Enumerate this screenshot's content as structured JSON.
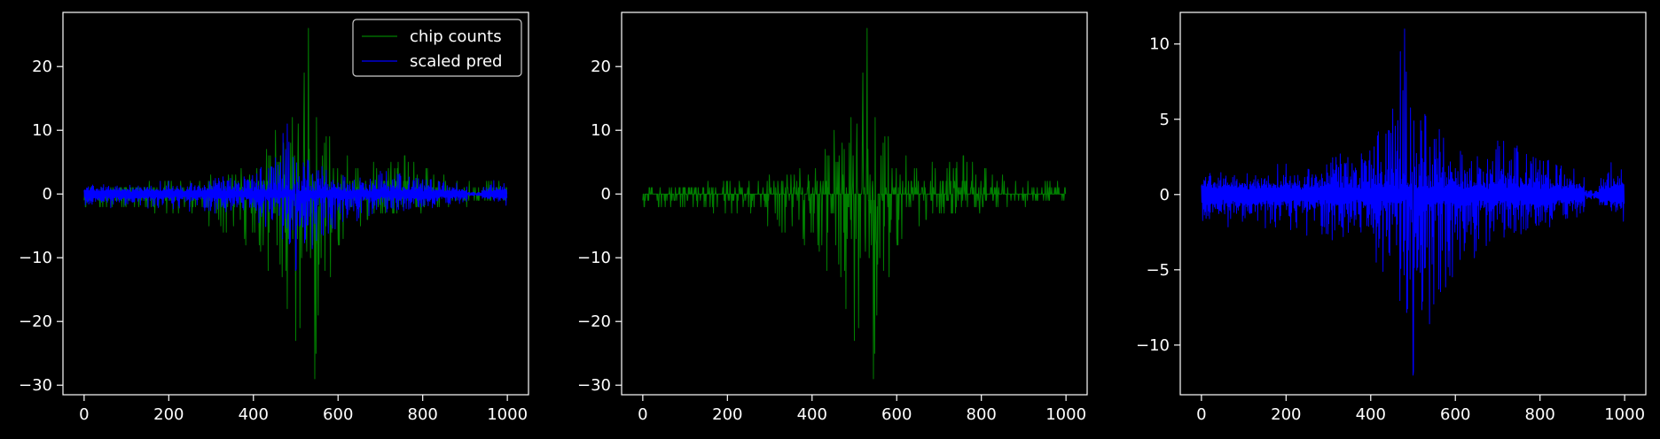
{
  "figure": {
    "background": "#000000",
    "foreground": "#ffffff"
  },
  "chart_data": [
    {
      "type": "line",
      "title": "",
      "xlabel": "",
      "ylabel": "",
      "xlim": [
        -50,
        1050
      ],
      "ylim": [
        -31.5,
        28.5
      ],
      "xticks": [
        0,
        200,
        400,
        600,
        800,
        1000
      ],
      "yticks": [
        -30,
        -20,
        -10,
        0,
        10,
        20
      ],
      "grid": false,
      "legend": {
        "placement": "top-right",
        "entries": [
          {
            "label": "chip counts",
            "color": "#008000"
          },
          {
            "label": "scaled pred",
            "color": "#0000ff"
          }
        ]
      },
      "series": [
        {
          "name": "chip counts",
          "color": "#008000",
          "n_points": 1000,
          "x_range": [
            0,
            999
          ],
          "envelope": {
            "x": [
              0,
              100,
              200,
              300,
              400,
              450,
              480,
              500,
              520,
              530,
              545,
              560,
              600,
              650,
              700,
              750,
              800,
              850,
              900,
              950,
              999
            ],
            "max": [
              1,
              2,
              2,
              3,
              5,
              11,
              16,
              10,
              15,
              26,
              19,
              13,
              9,
              4,
              6,
              6,
              6,
              4,
              2,
              3,
              2
            ],
            "min": [
              -2,
              -3,
              -3,
              -5,
              -9,
              -13,
              -18,
              -23,
              -20,
              -17,
              -29,
              -18,
              -10,
              -6,
              -4,
              -3,
              -3,
              -2,
              -2,
              -1,
              -2
            ]
          }
        },
        {
          "name": "scaled pred",
          "color": "#0000ff",
          "n_points": 1000,
          "x_range": [
            0,
            999
          ],
          "envelope": {
            "x": [
              0,
              100,
              200,
              300,
              400,
              450,
              480,
              500,
              520,
              550,
              600,
              650,
              700,
              750,
              800,
              850,
              900,
              920,
              950,
              980,
              999
            ],
            "max": [
              1.5,
              1.2,
              2,
              2.5,
              3.5,
              6,
              11,
              7,
              7,
              5,
              3.5,
              3,
              3.8,
              3.5,
              3,
              2.5,
              1.2,
              0.5,
              1.5,
              3,
              1
            ],
            "min": [
              -2,
              -2,
              -2.5,
              -3,
              -4,
              -6,
              -9,
              -12,
              -10,
              -8,
              -5,
              -4,
              -3,
              -3,
              -2.5,
              -2,
              -1.5,
              -0.5,
              -0.5,
              -1.5,
              -2
            ]
          }
        }
      ]
    },
    {
      "type": "line",
      "title": "",
      "xlabel": "",
      "ylabel": "",
      "xlim": [
        -50,
        1050
      ],
      "ylim": [
        -31.5,
        28.5
      ],
      "xticks": [
        0,
        200,
        400,
        600,
        800,
        1000
      ],
      "yticks": [
        -30,
        -20,
        -10,
        0,
        10,
        20
      ],
      "grid": false,
      "series": [
        {
          "color": "#008000",
          "n_points": 1000,
          "x_range": [
            0,
            999
          ],
          "envelope": {
            "x": [
              0,
              100,
              200,
              300,
              400,
              450,
              480,
              500,
              520,
              530,
              545,
              560,
              600,
              650,
              700,
              750,
              800,
              850,
              900,
              950,
              999
            ],
            "max": [
              1,
              2,
              2,
              3,
              5,
              11,
              16,
              10,
              15,
              26,
              19,
              13,
              9,
              4,
              6,
              6,
              6,
              4,
              2,
              3,
              2
            ],
            "min": [
              -2,
              -3,
              -3,
              -5,
              -9,
              -13,
              -18,
              -23,
              -20,
              -17,
              -29,
              -18,
              -10,
              -6,
              -4,
              -3,
              -3,
              -2,
              -2,
              -1,
              -2
            ]
          }
        }
      ]
    },
    {
      "type": "line",
      "title": "",
      "xlabel": "",
      "ylabel": "",
      "xlim": [
        -50,
        1050
      ],
      "ylim": [
        -13.3,
        12.1
      ],
      "xticks": [
        0,
        200,
        400,
        600,
        800,
        1000
      ],
      "yticks": [
        -10,
        -5,
        0,
        5,
        10
      ],
      "grid": false,
      "series": [
        {
          "color": "#0000ff",
          "n_points": 1000,
          "x_range": [
            0,
            999
          ],
          "envelope": {
            "x": [
              0,
              100,
              200,
              300,
              400,
              450,
              480,
              500,
              520,
              550,
              600,
              650,
              700,
              750,
              800,
              850,
              900,
              920,
              950,
              980,
              999
            ],
            "max": [
              1.5,
              1.2,
              2,
              2.5,
              3.5,
              6,
              11,
              7,
              7,
              5,
              3.5,
              3,
              3.8,
              3.5,
              3,
              2.5,
              1.2,
              0.5,
              1.5,
              3,
              1
            ],
            "min": [
              -2,
              -2,
              -2.5,
              -3,
              -4,
              -6,
              -9,
              -12,
              -10,
              -8,
              -5,
              -4,
              -3,
              -3,
              -2.5,
              -2,
              -1.5,
              -0.5,
              -0.5,
              -1.5,
              -2
            ]
          }
        }
      ]
    }
  ]
}
